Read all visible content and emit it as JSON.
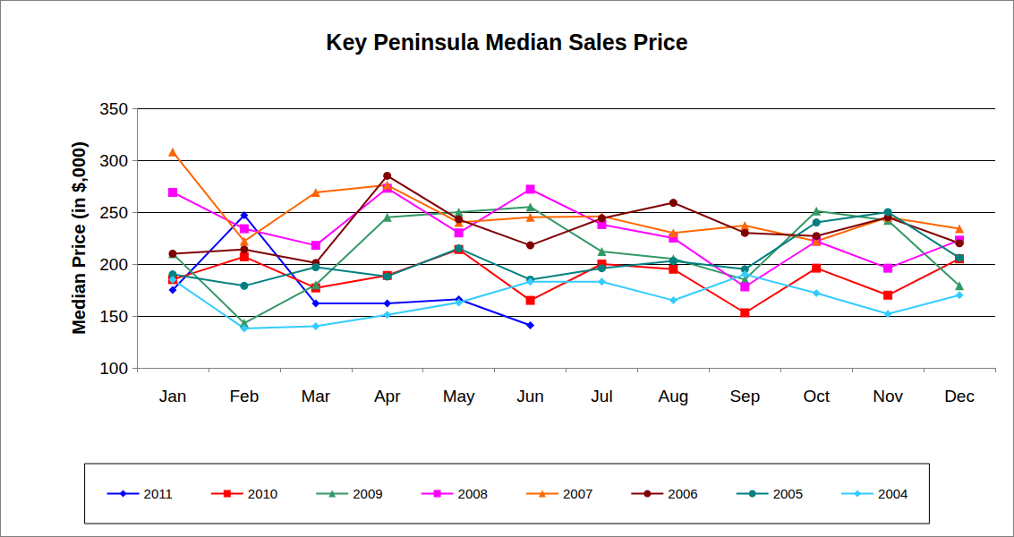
{
  "chart_data": {
    "type": "line",
    "title": "Key Peninsula Median Sales Price",
    "y_label": "Median Price (in $,000)",
    "categories": [
      "Jan",
      "Feb",
      "Mar",
      "Apr",
      "May",
      "Jun",
      "Jul",
      "Aug",
      "Sep",
      "Oct",
      "Nov",
      "Dec"
    ],
    "ylim": [
      100,
      350
    ],
    "yticks": [
      100,
      150,
      200,
      250,
      300,
      350
    ],
    "grid": true,
    "legend": "bottom",
    "series": [
      {
        "name": "2011",
        "color": "#0000FF",
        "marker": "diamond",
        "values": [
          175,
          247,
          162,
          162,
          166,
          141,
          null,
          null,
          null,
          null,
          null,
          null
        ]
      },
      {
        "name": "2010",
        "color": "#FF0000",
        "marker": "square",
        "values": [
          185,
          207,
          177,
          189,
          214,
          165,
          200,
          195,
          153,
          196,
          170,
          205
        ]
      },
      {
        "name": "2009",
        "color": "#339966",
        "marker": "triangle",
        "values": [
          210,
          143,
          180,
          245,
          250,
          255,
          212,
          205,
          185,
          251,
          242,
          179
        ]
      },
      {
        "name": "2008",
        "color": "#FF00FF",
        "marker": "square",
        "values": [
          269,
          234,
          218,
          273,
          230,
          272,
          238,
          225,
          178,
          222,
          196,
          223
        ]
      },
      {
        "name": "2007",
        "color": "#FF6600",
        "marker": "triangle",
        "values": [
          308,
          222,
          269,
          276,
          240,
          245,
          246,
          230,
          237,
          222,
          245,
          234
        ]
      },
      {
        "name": "2006",
        "color": "#800000",
        "marker": "circle",
        "values": [
          210,
          214,
          201,
          285,
          243,
          218,
          244,
          259,
          230,
          227,
          245,
          220
        ]
      },
      {
        "name": "2005",
        "color": "#008080",
        "marker": "circle",
        "values": [
          190,
          179,
          197,
          188,
          215,
          185,
          196,
          203,
          195,
          240,
          250,
          206
        ]
      },
      {
        "name": "2004",
        "color": "#33CCFF",
        "marker": "diamond",
        "values": [
          185,
          138,
          140,
          151,
          163,
          183,
          183,
          165,
          190,
          172,
          152,
          170
        ]
      }
    ]
  }
}
